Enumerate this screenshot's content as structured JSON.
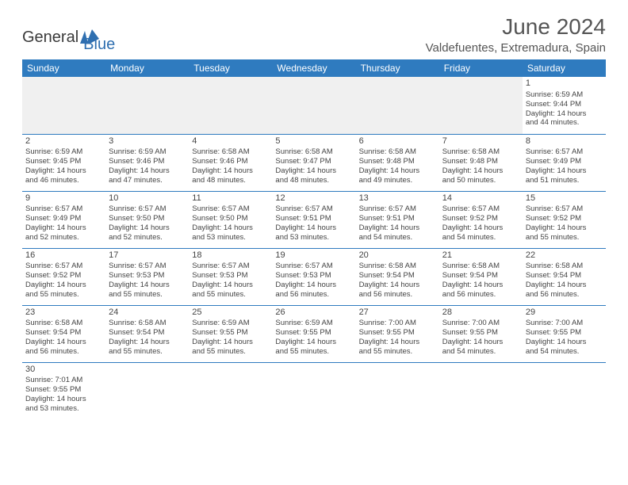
{
  "logo": {
    "text1": "General",
    "text2": "Blue"
  },
  "title": "June 2024",
  "location": "Valdefuentes, Extremadura, Spain",
  "colors": {
    "header_bg": "#2f7bbf",
    "header_text": "#ffffff",
    "border": "#2f7bbf",
    "blank_bg": "#f0f0f0",
    "text": "#444444",
    "title_text": "#555555"
  },
  "days_of_week": [
    "Sunday",
    "Monday",
    "Tuesday",
    "Wednesday",
    "Thursday",
    "Friday",
    "Saturday"
  ],
  "weeks": [
    [
      null,
      null,
      null,
      null,
      null,
      null,
      {
        "n": "1",
        "sunrise": "Sunrise: 6:59 AM",
        "sunset": "Sunset: 9:44 PM",
        "day1": "Daylight: 14 hours",
        "day2": "and 44 minutes."
      }
    ],
    [
      {
        "n": "2",
        "sunrise": "Sunrise: 6:59 AM",
        "sunset": "Sunset: 9:45 PM",
        "day1": "Daylight: 14 hours",
        "day2": "and 46 minutes."
      },
      {
        "n": "3",
        "sunrise": "Sunrise: 6:59 AM",
        "sunset": "Sunset: 9:46 PM",
        "day1": "Daylight: 14 hours",
        "day2": "and 47 minutes."
      },
      {
        "n": "4",
        "sunrise": "Sunrise: 6:58 AM",
        "sunset": "Sunset: 9:46 PM",
        "day1": "Daylight: 14 hours",
        "day2": "and 48 minutes."
      },
      {
        "n": "5",
        "sunrise": "Sunrise: 6:58 AM",
        "sunset": "Sunset: 9:47 PM",
        "day1": "Daylight: 14 hours",
        "day2": "and 48 minutes."
      },
      {
        "n": "6",
        "sunrise": "Sunrise: 6:58 AM",
        "sunset": "Sunset: 9:48 PM",
        "day1": "Daylight: 14 hours",
        "day2": "and 49 minutes."
      },
      {
        "n": "7",
        "sunrise": "Sunrise: 6:58 AM",
        "sunset": "Sunset: 9:48 PM",
        "day1": "Daylight: 14 hours",
        "day2": "and 50 minutes."
      },
      {
        "n": "8",
        "sunrise": "Sunrise: 6:57 AM",
        "sunset": "Sunset: 9:49 PM",
        "day1": "Daylight: 14 hours",
        "day2": "and 51 minutes."
      }
    ],
    [
      {
        "n": "9",
        "sunrise": "Sunrise: 6:57 AM",
        "sunset": "Sunset: 9:49 PM",
        "day1": "Daylight: 14 hours",
        "day2": "and 52 minutes."
      },
      {
        "n": "10",
        "sunrise": "Sunrise: 6:57 AM",
        "sunset": "Sunset: 9:50 PM",
        "day1": "Daylight: 14 hours",
        "day2": "and 52 minutes."
      },
      {
        "n": "11",
        "sunrise": "Sunrise: 6:57 AM",
        "sunset": "Sunset: 9:50 PM",
        "day1": "Daylight: 14 hours",
        "day2": "and 53 minutes."
      },
      {
        "n": "12",
        "sunrise": "Sunrise: 6:57 AM",
        "sunset": "Sunset: 9:51 PM",
        "day1": "Daylight: 14 hours",
        "day2": "and 53 minutes."
      },
      {
        "n": "13",
        "sunrise": "Sunrise: 6:57 AM",
        "sunset": "Sunset: 9:51 PM",
        "day1": "Daylight: 14 hours",
        "day2": "and 54 minutes."
      },
      {
        "n": "14",
        "sunrise": "Sunrise: 6:57 AM",
        "sunset": "Sunset: 9:52 PM",
        "day1": "Daylight: 14 hours",
        "day2": "and 54 minutes."
      },
      {
        "n": "15",
        "sunrise": "Sunrise: 6:57 AM",
        "sunset": "Sunset: 9:52 PM",
        "day1": "Daylight: 14 hours",
        "day2": "and 55 minutes."
      }
    ],
    [
      {
        "n": "16",
        "sunrise": "Sunrise: 6:57 AM",
        "sunset": "Sunset: 9:52 PM",
        "day1": "Daylight: 14 hours",
        "day2": "and 55 minutes."
      },
      {
        "n": "17",
        "sunrise": "Sunrise: 6:57 AM",
        "sunset": "Sunset: 9:53 PM",
        "day1": "Daylight: 14 hours",
        "day2": "and 55 minutes."
      },
      {
        "n": "18",
        "sunrise": "Sunrise: 6:57 AM",
        "sunset": "Sunset: 9:53 PM",
        "day1": "Daylight: 14 hours",
        "day2": "and 55 minutes."
      },
      {
        "n": "19",
        "sunrise": "Sunrise: 6:57 AM",
        "sunset": "Sunset: 9:53 PM",
        "day1": "Daylight: 14 hours",
        "day2": "and 56 minutes."
      },
      {
        "n": "20",
        "sunrise": "Sunrise: 6:58 AM",
        "sunset": "Sunset: 9:54 PM",
        "day1": "Daylight: 14 hours",
        "day2": "and 56 minutes."
      },
      {
        "n": "21",
        "sunrise": "Sunrise: 6:58 AM",
        "sunset": "Sunset: 9:54 PM",
        "day1": "Daylight: 14 hours",
        "day2": "and 56 minutes."
      },
      {
        "n": "22",
        "sunrise": "Sunrise: 6:58 AM",
        "sunset": "Sunset: 9:54 PM",
        "day1": "Daylight: 14 hours",
        "day2": "and 56 minutes."
      }
    ],
    [
      {
        "n": "23",
        "sunrise": "Sunrise: 6:58 AM",
        "sunset": "Sunset: 9:54 PM",
        "day1": "Daylight: 14 hours",
        "day2": "and 56 minutes."
      },
      {
        "n": "24",
        "sunrise": "Sunrise: 6:58 AM",
        "sunset": "Sunset: 9:54 PM",
        "day1": "Daylight: 14 hours",
        "day2": "and 55 minutes."
      },
      {
        "n": "25",
        "sunrise": "Sunrise: 6:59 AM",
        "sunset": "Sunset: 9:55 PM",
        "day1": "Daylight: 14 hours",
        "day2": "and 55 minutes."
      },
      {
        "n": "26",
        "sunrise": "Sunrise: 6:59 AM",
        "sunset": "Sunset: 9:55 PM",
        "day1": "Daylight: 14 hours",
        "day2": "and 55 minutes."
      },
      {
        "n": "27",
        "sunrise": "Sunrise: 7:00 AM",
        "sunset": "Sunset: 9:55 PM",
        "day1": "Daylight: 14 hours",
        "day2": "and 55 minutes."
      },
      {
        "n": "28",
        "sunrise": "Sunrise: 7:00 AM",
        "sunset": "Sunset: 9:55 PM",
        "day1": "Daylight: 14 hours",
        "day2": "and 54 minutes."
      },
      {
        "n": "29",
        "sunrise": "Sunrise: 7:00 AM",
        "sunset": "Sunset: 9:55 PM",
        "day1": "Daylight: 14 hours",
        "day2": "and 54 minutes."
      }
    ],
    [
      {
        "n": "30",
        "sunrise": "Sunrise: 7:01 AM",
        "sunset": "Sunset: 9:55 PM",
        "day1": "Daylight: 14 hours",
        "day2": "and 53 minutes."
      },
      null,
      null,
      null,
      null,
      null,
      null
    ]
  ]
}
